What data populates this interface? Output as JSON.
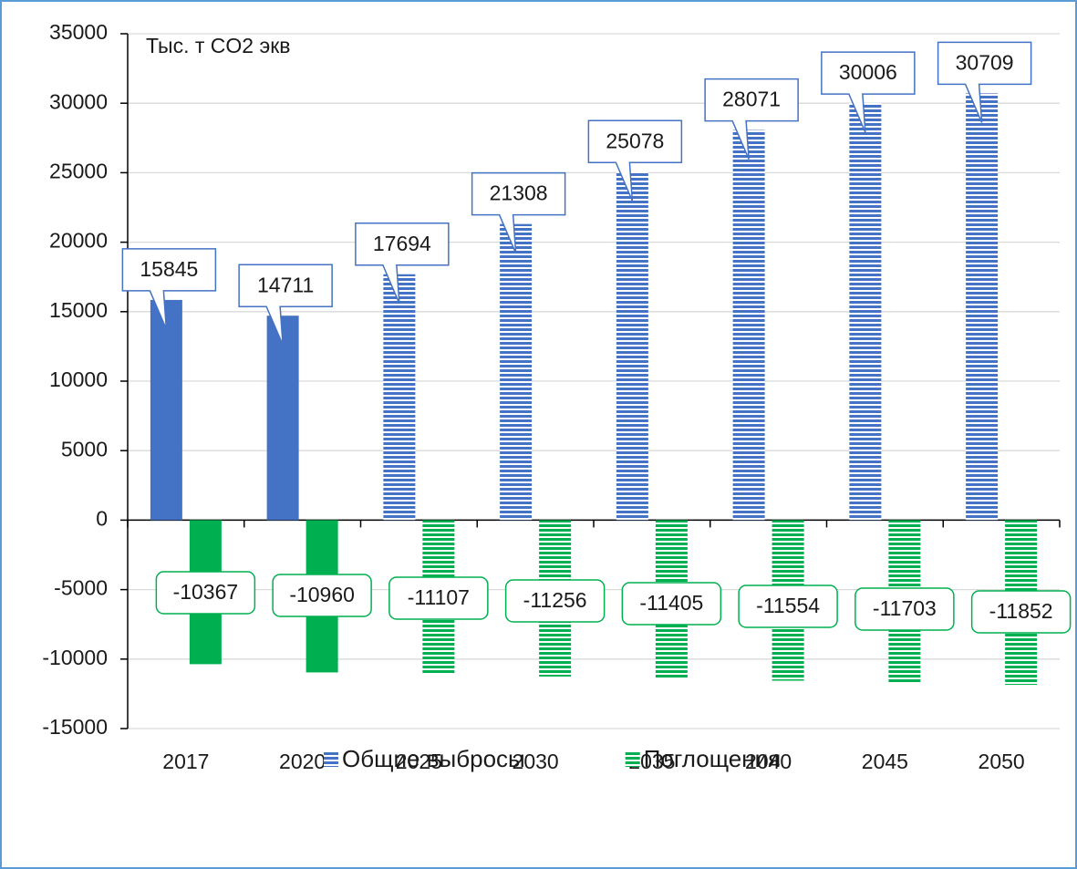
{
  "chart_data": {
    "type": "bar",
    "title": "Тыс. т CO2 экв",
    "categories": [
      "2017",
      "2020",
      "2025",
      "2030",
      "2035",
      "2040",
      "2045",
      "2050"
    ],
    "series": [
      {
        "name": "Общие выбросы",
        "color": "#4472c4",
        "fill_styles": [
          "solid",
          "solid",
          "striped",
          "striped",
          "striped",
          "striped",
          "striped",
          "striped"
        ],
        "values": [
          15845,
          14711,
          17694,
          21308,
          25078,
          28071,
          30006,
          30709
        ]
      },
      {
        "name": "Поглощения",
        "color": "#00b050",
        "fill_styles": [
          "solid",
          "solid",
          "striped",
          "striped",
          "striped",
          "striped",
          "striped",
          "striped"
        ],
        "values": [
          -10367,
          -10960,
          -11107,
          -11256,
          -11405,
          -11554,
          -11703,
          -11852
        ]
      }
    ],
    "ylim": [
      -15000,
      35000
    ],
    "yticks": [
      -15000,
      -10000,
      -5000,
      0,
      5000,
      10000,
      15000,
      20000,
      25000,
      30000,
      35000
    ],
    "grid": true,
    "legend": "bottom"
  }
}
